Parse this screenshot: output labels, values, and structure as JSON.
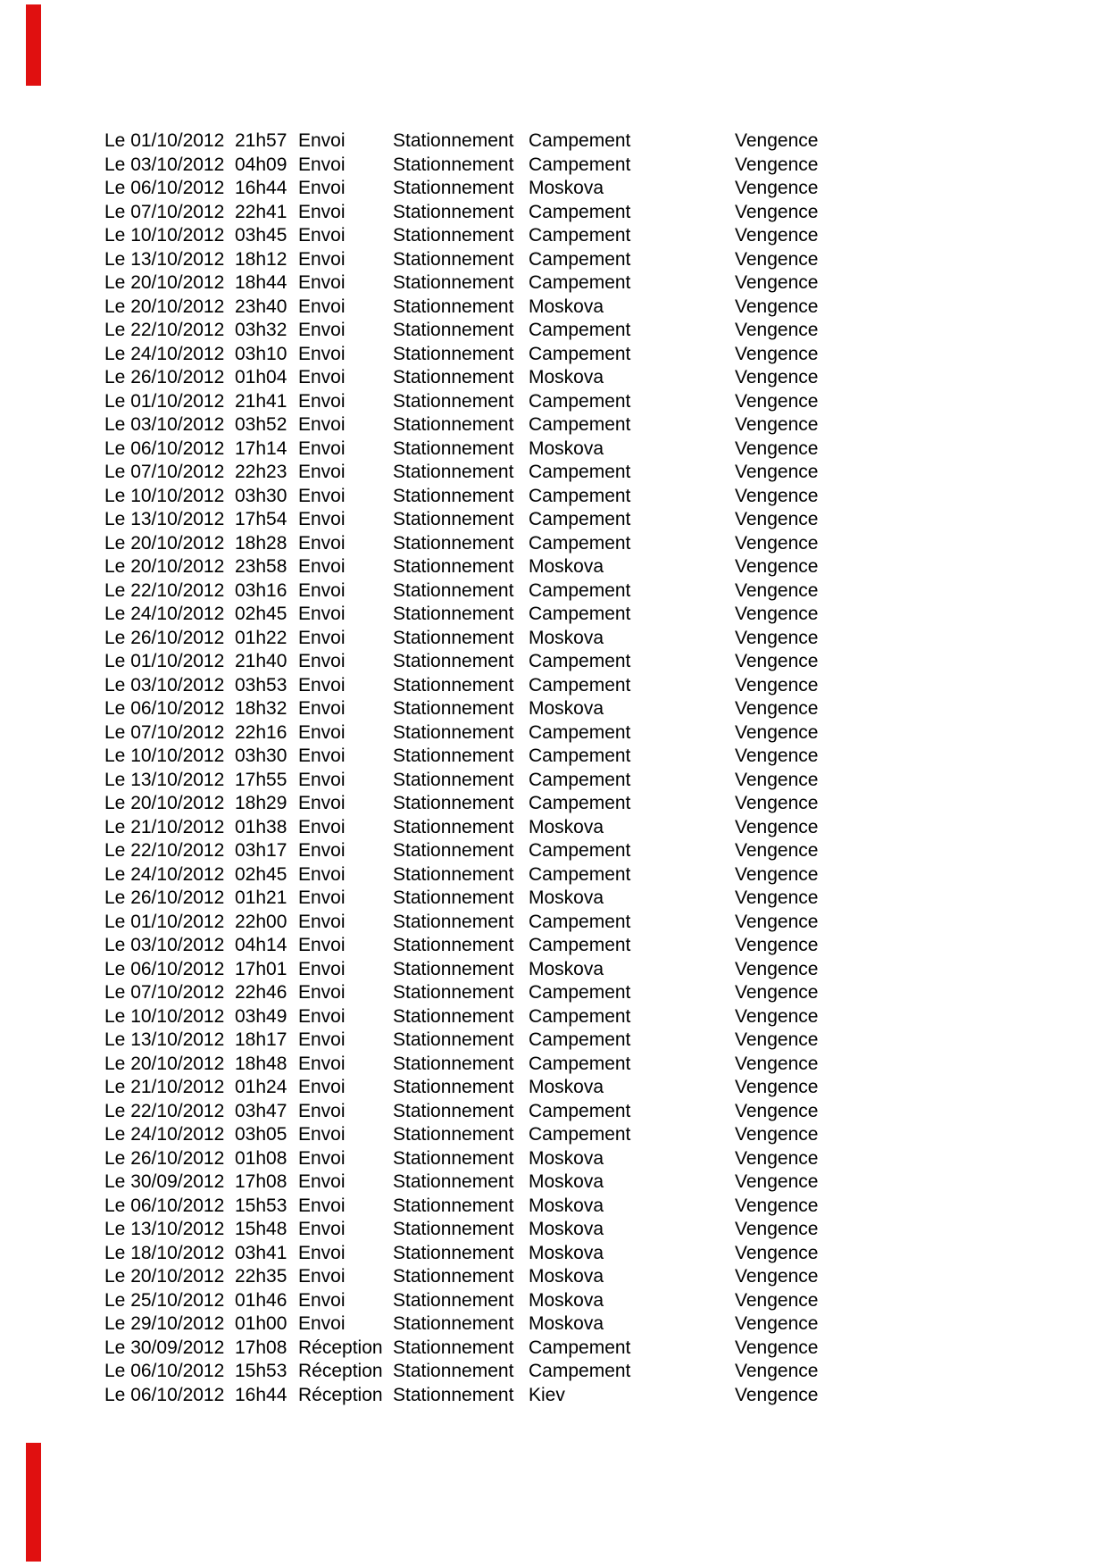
{
  "page": {
    "background_color": "#ffffff",
    "text_color": "#000000",
    "marker_color": "#e01010"
  },
  "log": {
    "rows": [
      {
        "date": "Le 01/10/2012",
        "time": "21h57",
        "type": "Envoi",
        "category": "Stationnement",
        "location": "Campement",
        "tag": "Vengence"
      },
      {
        "date": "Le 03/10/2012",
        "time": "04h09",
        "type": "Envoi",
        "category": "Stationnement",
        "location": "Campement",
        "tag": "Vengence"
      },
      {
        "date": "Le 06/10/2012",
        "time": "16h44",
        "type": "Envoi",
        "category": "Stationnement",
        "location": "Moskova",
        "tag": "Vengence"
      },
      {
        "date": "Le 07/10/2012",
        "time": "22h41",
        "type": "Envoi",
        "category": "Stationnement",
        "location": "Campement",
        "tag": "Vengence"
      },
      {
        "date": "Le 10/10/2012",
        "time": "03h45",
        "type": "Envoi",
        "category": "Stationnement",
        "location": "Campement",
        "tag": "Vengence"
      },
      {
        "date": "Le 13/10/2012",
        "time": "18h12",
        "type": "Envoi",
        "category": "Stationnement",
        "location": "Campement",
        "tag": "Vengence"
      },
      {
        "date": "Le 20/10/2012",
        "time": "18h44",
        "type": "Envoi",
        "category": "Stationnement",
        "location": "Campement",
        "tag": "Vengence"
      },
      {
        "date": "Le 20/10/2012",
        "time": "23h40",
        "type": "Envoi",
        "category": "Stationnement",
        "location": "Moskova",
        "tag": "Vengence"
      },
      {
        "date": "Le 22/10/2012",
        "time": "03h32",
        "type": "Envoi",
        "category": "Stationnement",
        "location": "Campement",
        "tag": "Vengence"
      },
      {
        "date": "Le 24/10/2012",
        "time": "03h10",
        "type": "Envoi",
        "category": "Stationnement",
        "location": "Campement",
        "tag": "Vengence"
      },
      {
        "date": "Le 26/10/2012",
        "time": "01h04",
        "type": "Envoi",
        "category": "Stationnement",
        "location": "Moskova",
        "tag": "Vengence"
      },
      {
        "date": "Le 01/10/2012",
        "time": "21h41",
        "type": "Envoi",
        "category": "Stationnement",
        "location": "Campement",
        "tag": "Vengence"
      },
      {
        "date": "Le 03/10/2012",
        "time": "03h52",
        "type": "Envoi",
        "category": "Stationnement",
        "location": "Campement",
        "tag": "Vengence"
      },
      {
        "date": "Le 06/10/2012",
        "time": "17h14",
        "type": "Envoi",
        "category": "Stationnement",
        "location": "Moskova",
        "tag": "Vengence"
      },
      {
        "date": "Le 07/10/2012",
        "time": "22h23",
        "type": "Envoi",
        "category": "Stationnement",
        "location": "Campement",
        "tag": "Vengence"
      },
      {
        "date": "Le 10/10/2012",
        "time": "03h30",
        "type": "Envoi",
        "category": "Stationnement",
        "location": "Campement",
        "tag": "Vengence"
      },
      {
        "date": "Le 13/10/2012",
        "time": "17h54",
        "type": "Envoi",
        "category": "Stationnement",
        "location": "Campement",
        "tag": "Vengence"
      },
      {
        "date": "Le 20/10/2012",
        "time": "18h28",
        "type": "Envoi",
        "category": "Stationnement",
        "location": "Campement",
        "tag": "Vengence"
      },
      {
        "date": "Le 20/10/2012",
        "time": "23h58",
        "type": "Envoi",
        "category": "Stationnement",
        "location": "Moskova",
        "tag": "Vengence"
      },
      {
        "date": "Le 22/10/2012",
        "time": "03h16",
        "type": "Envoi",
        "category": "Stationnement",
        "location": "Campement",
        "tag": "Vengence"
      },
      {
        "date": "Le 24/10/2012",
        "time": "02h45",
        "type": "Envoi",
        "category": "Stationnement",
        "location": "Campement",
        "tag": "Vengence"
      },
      {
        "date": "Le 26/10/2012",
        "time": "01h22",
        "type": "Envoi",
        "category": "Stationnement",
        "location": "Moskova",
        "tag": "Vengence"
      },
      {
        "date": "Le 01/10/2012",
        "time": "21h40",
        "type": "Envoi",
        "category": "Stationnement",
        "location": "Campement",
        "tag": "Vengence"
      },
      {
        "date": "Le 03/10/2012",
        "time": "03h53",
        "type": "Envoi",
        "category": "Stationnement",
        "location": "Campement",
        "tag": "Vengence"
      },
      {
        "date": "Le 06/10/2012",
        "time": "18h32",
        "type": "Envoi",
        "category": "Stationnement",
        "location": "Moskova",
        "tag": "Vengence"
      },
      {
        "date": "Le 07/10/2012",
        "time": "22h16",
        "type": "Envoi",
        "category": "Stationnement",
        "location": "Campement",
        "tag": "Vengence"
      },
      {
        "date": "Le 10/10/2012",
        "time": "03h30",
        "type": "Envoi",
        "category": "Stationnement",
        "location": "Campement",
        "tag": "Vengence"
      },
      {
        "date": "Le 13/10/2012",
        "time": "17h55",
        "type": "Envoi",
        "category": "Stationnement",
        "location": "Campement",
        "tag": "Vengence"
      },
      {
        "date": "Le 20/10/2012",
        "time": "18h29",
        "type": "Envoi",
        "category": "Stationnement",
        "location": "Campement",
        "tag": "Vengence"
      },
      {
        "date": "Le 21/10/2012",
        "time": "01h38",
        "type": "Envoi",
        "category": "Stationnement",
        "location": "Moskova",
        "tag": "Vengence"
      },
      {
        "date": "Le 22/10/2012",
        "time": "03h17",
        "type": "Envoi",
        "category": "Stationnement",
        "location": "Campement",
        "tag": "Vengence"
      },
      {
        "date": "Le 24/10/2012",
        "time": "02h45",
        "type": "Envoi",
        "category": "Stationnement",
        "location": "Campement",
        "tag": "Vengence"
      },
      {
        "date": "Le 26/10/2012",
        "time": "01h21",
        "type": "Envoi",
        "category": "Stationnement",
        "location": "Moskova",
        "tag": "Vengence"
      },
      {
        "date": "Le 01/10/2012",
        "time": "22h00",
        "type": "Envoi",
        "category": "Stationnement",
        "location": "Campement",
        "tag": "Vengence"
      },
      {
        "date": "Le 03/10/2012",
        "time": "04h14",
        "type": "Envoi",
        "category": "Stationnement",
        "location": "Campement",
        "tag": "Vengence"
      },
      {
        "date": "Le 06/10/2012",
        "time": "17h01",
        "type": "Envoi",
        "category": "Stationnement",
        "location": "Moskova",
        "tag": "Vengence"
      },
      {
        "date": "Le 07/10/2012",
        "time": "22h46",
        "type": "Envoi",
        "category": "Stationnement",
        "location": "Campement",
        "tag": "Vengence"
      },
      {
        "date": "Le 10/10/2012",
        "time": "03h49",
        "type": "Envoi",
        "category": "Stationnement",
        "location": "Campement",
        "tag": "Vengence"
      },
      {
        "date": "Le 13/10/2012",
        "time": "18h17",
        "type": "Envoi",
        "category": "Stationnement",
        "location": "Campement",
        "tag": "Vengence"
      },
      {
        "date": "Le 20/10/2012",
        "time": "18h48",
        "type": "Envoi",
        "category": "Stationnement",
        "location": "Campement",
        "tag": "Vengence"
      },
      {
        "date": "Le 21/10/2012",
        "time": "01h24",
        "type": "Envoi",
        "category": "Stationnement",
        "location": "Moskova",
        "tag": "Vengence"
      },
      {
        "date": "Le 22/10/2012",
        "time": "03h47",
        "type": "Envoi",
        "category": "Stationnement",
        "location": "Campement",
        "tag": "Vengence"
      },
      {
        "date": "Le 24/10/2012",
        "time": "03h05",
        "type": "Envoi",
        "category": "Stationnement",
        "location": "Campement",
        "tag": "Vengence"
      },
      {
        "date": "Le 26/10/2012",
        "time": "01h08",
        "type": "Envoi",
        "category": "Stationnement",
        "location": "Moskova",
        "tag": "Vengence"
      },
      {
        "date": "Le 30/09/2012",
        "time": "17h08",
        "type": "Envoi",
        "category": "Stationnement",
        "location": "Moskova",
        "tag": "Vengence"
      },
      {
        "date": "Le 06/10/2012",
        "time": "15h53",
        "type": "Envoi",
        "category": "Stationnement",
        "location": "Moskova",
        "tag": "Vengence"
      },
      {
        "date": "Le 13/10/2012",
        "time": "15h48",
        "type": "Envoi",
        "category": "Stationnement",
        "location": "Moskova",
        "tag": "Vengence"
      },
      {
        "date": "Le 18/10/2012",
        "time": "03h41",
        "type": "Envoi",
        "category": "Stationnement",
        "location": "Moskova",
        "tag": "Vengence"
      },
      {
        "date": "Le 20/10/2012",
        "time": "22h35",
        "type": "Envoi",
        "category": "Stationnement",
        "location": "Moskova",
        "tag": "Vengence"
      },
      {
        "date": "Le 25/10/2012",
        "time": "01h46",
        "type": "Envoi",
        "category": "Stationnement",
        "location": "Moskova",
        "tag": "Vengence"
      },
      {
        "date": "Le 29/10/2012",
        "time": "01h00",
        "type": "Envoi",
        "category": "Stationnement",
        "location": "Moskova",
        "tag": "Vengence"
      },
      {
        "date": "Le 30/09/2012",
        "time": "17h08",
        "type": "Réception",
        "category": "Stationnement",
        "location": "Campement",
        "tag": "Vengence"
      },
      {
        "date": "Le 06/10/2012",
        "time": "15h53",
        "type": "Réception",
        "category": "Stationnement",
        "location": "Campement",
        "tag": "Vengence"
      },
      {
        "date": "Le 06/10/2012",
        "time": "16h44",
        "type": "Réception",
        "category": "Stationnement",
        "location": "Kiev",
        "tag": "Vengence"
      }
    ]
  }
}
